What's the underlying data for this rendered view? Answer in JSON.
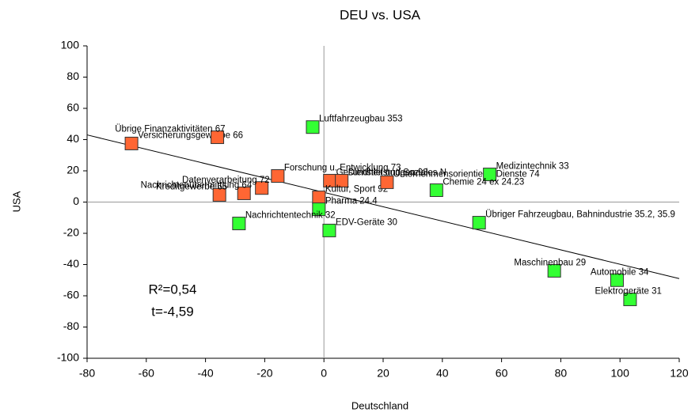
{
  "chart_data": {
    "type": "scatter",
    "title": "DEU vs. USA",
    "x_label": "Deutschland",
    "y_label": "USA",
    "xlim": [
      -80,
      120
    ],
    "xticks": [
      -80,
      -60,
      -40,
      -20,
      0,
      20,
      40,
      60,
      80,
      100,
      120
    ],
    "ylim": [
      -100,
      100
    ],
    "yticks": [
      -100,
      -80,
      -60,
      -40,
      -20,
      0,
      20,
      40,
      60,
      80,
      100
    ],
    "series": [
      {
        "color": "#ff6633",
        "x": [
          -65,
          -36,
          -15.6,
          -27,
          -35.3,
          -21,
          2,
          6,
          -1.7,
          21.3
        ],
        "y": [
          37.5,
          41.5,
          16.7,
          5.6,
          4.6,
          9,
          13.7,
          13.7,
          3,
          12.7
        ],
        "labels": [
          "Versicherungsgewerbe 66",
          "Übrige Finanzaktivitäten 67",
          "Forschung u. Entwicklung 73",
          "Nachrichtenübermittlung 64",
          "Kreditgewerbe 65",
          "Datenverarbeitung 72",
          "Gesundheit und Soziales N",
          "Dienstleistungen 93",
          "Kultur, Sport 92",
          "Unternehmensorientierte Dienste 74"
        ]
      },
      {
        "color": "#33ff33",
        "x": [
          -3.8,
          56,
          38,
          -1.7,
          -28.7,
          1.8,
          52.4,
          77.8,
          99,
          103.4
        ],
        "y": [
          48,
          17.7,
          7.6,
          -4.6,
          -13.7,
          -18.2,
          -13.2,
          -44,
          -50,
          -62.3
        ],
        "labels": [
          "Luftfahrzeugbau 353",
          "Medizintechnik 33",
          "Chemie 24 ex 24.23",
          "Pharma 24.4",
          "Nachrichtentechnik 32",
          "EDV-Geräte 30",
          "Übriger Fahrzeugbau, Bahnindustrie 35.2, 35.9",
          "Maschinenbau 29",
          "Automobile 34",
          "Elektrogeräte 31"
        ]
      }
    ],
    "trendline": {
      "x": [
        -80,
        120
      ],
      "y": [
        43,
        -49
      ]
    },
    "annotations": [
      "R²=0,54",
      "t=-4,59"
    ]
  }
}
